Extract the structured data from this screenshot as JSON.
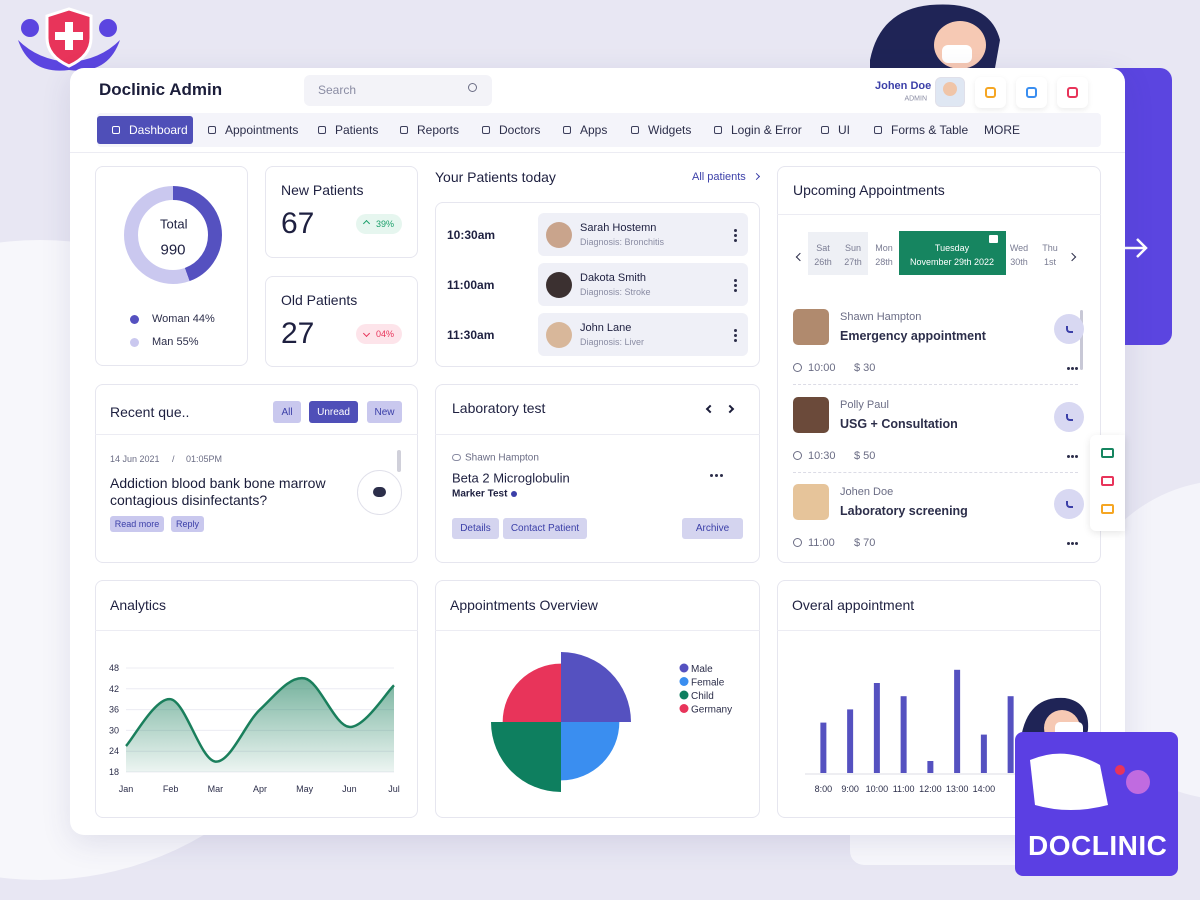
{
  "header": {
    "title": "Doclinic Admin",
    "search_placeholder": "Search",
    "user_name": "Johen Doe",
    "user_role": "ADMIN"
  },
  "nav": {
    "items": [
      "Dashboard",
      "Appointments",
      "Patients",
      "Reports",
      "Doctors",
      "Apps",
      "Widgets",
      "Login & Error",
      "UI",
      "Forms & Table",
      "MORE"
    ],
    "active_index": 0
  },
  "summary": {
    "center_label": "Total",
    "total": 990,
    "segments": [
      {
        "label": "Woman 44%",
        "value": 44,
        "color": "#5551c0"
      },
      {
        "label": "Man 55%",
        "value": 55,
        "color": "#cac8ef"
      }
    ]
  },
  "new_patients": {
    "title": "New Patients",
    "value": 67,
    "change": "39%"
  },
  "old_patients": {
    "title": "Old Patients",
    "value": 27,
    "change": "04%"
  },
  "patients_today": {
    "title": "Your Patients today",
    "link": "All patients",
    "rows": [
      {
        "time": "10:30am",
        "name": "Sarah Hostemn",
        "diagnosis": "Diagnosis: Bronchitis"
      },
      {
        "time": "11:00am",
        "name": "Dakota Smith",
        "diagnosis": "Diagnosis: Stroke"
      },
      {
        "time": "11:30am",
        "name": "John Lane",
        "diagnosis": "Diagnosis: Liver"
      }
    ]
  },
  "upcoming": {
    "title": "Upcoming Appointments",
    "selected_index": 3,
    "days": [
      {
        "day": "Sat",
        "date": "26th"
      },
      {
        "day": "Sun",
        "date": "27th"
      },
      {
        "day": "Mon",
        "date": "28th"
      },
      {
        "day": "Tuesday",
        "date": "November 29th 2022"
      },
      {
        "day": "Wed",
        "date": "30th"
      },
      {
        "day": "Thu",
        "date": "1st"
      }
    ],
    "items": [
      {
        "name": "Shawn Hampton",
        "type": "Emergency appointment",
        "time": "10:00",
        "price": "$ 30"
      },
      {
        "name": "Polly Paul",
        "type": "USG + Consultation",
        "time": "10:30",
        "price": "$ 50"
      },
      {
        "name": "Johen Doe",
        "type": "Laboratory screening",
        "time": "11:00",
        "price": "$ 70"
      }
    ]
  },
  "recent_queries": {
    "title": "Recent que..",
    "tabs": [
      "All",
      "Unread",
      "New"
    ],
    "active_tab": 1,
    "date": "14 Jun 2021",
    "separator": "/",
    "time": "01:05PM",
    "question": "Addiction blood bank bone marrow contagious disinfectants?",
    "actions": [
      "Read more",
      "Reply"
    ]
  },
  "lab_test": {
    "title": "Laboratory test",
    "doctor": "Shawn Hampton",
    "test": "Beta 2 Microglobulin",
    "subtitle": "Marker Test",
    "actions": [
      "Details",
      "Contact Patient",
      "Archive"
    ]
  },
  "badge": "DOCLINIC",
  "chart_data": [
    {
      "type": "area",
      "title": "Analytics",
      "categories": [
        "Jan",
        "Feb",
        "Mar",
        "Apr",
        "May",
        "Jun",
        "Jul"
      ],
      "values": [
        25.5,
        39,
        21,
        36,
        45,
        31,
        43
      ],
      "ylim": [
        18,
        48
      ],
      "yticks": [
        18,
        24,
        30,
        36,
        42,
        48
      ],
      "color": "#1a7f5c",
      "grid": true
    },
    {
      "type": "polarArea",
      "title": "Appointments Overview",
      "categories": [
        "Male",
        "Female",
        "Child",
        "Germany"
      ],
      "values": [
        12,
        10,
        12,
        10
      ],
      "colors": [
        "#5551c0",
        "#3a8ef0",
        "#0e7f5f",
        "#e8345a"
      ]
    },
    {
      "type": "bar",
      "title": "Overal appointment",
      "categories": [
        "8:00",
        "9:00",
        "10:00",
        "11:00",
        "12:00",
        "13:00",
        "14:00",
        null
      ],
      "values": [
        42,
        53,
        75,
        64,
        10,
        86,
        32,
        64
      ],
      "ylim": [
        0,
        100
      ],
      "color": "#5551c0"
    }
  ]
}
